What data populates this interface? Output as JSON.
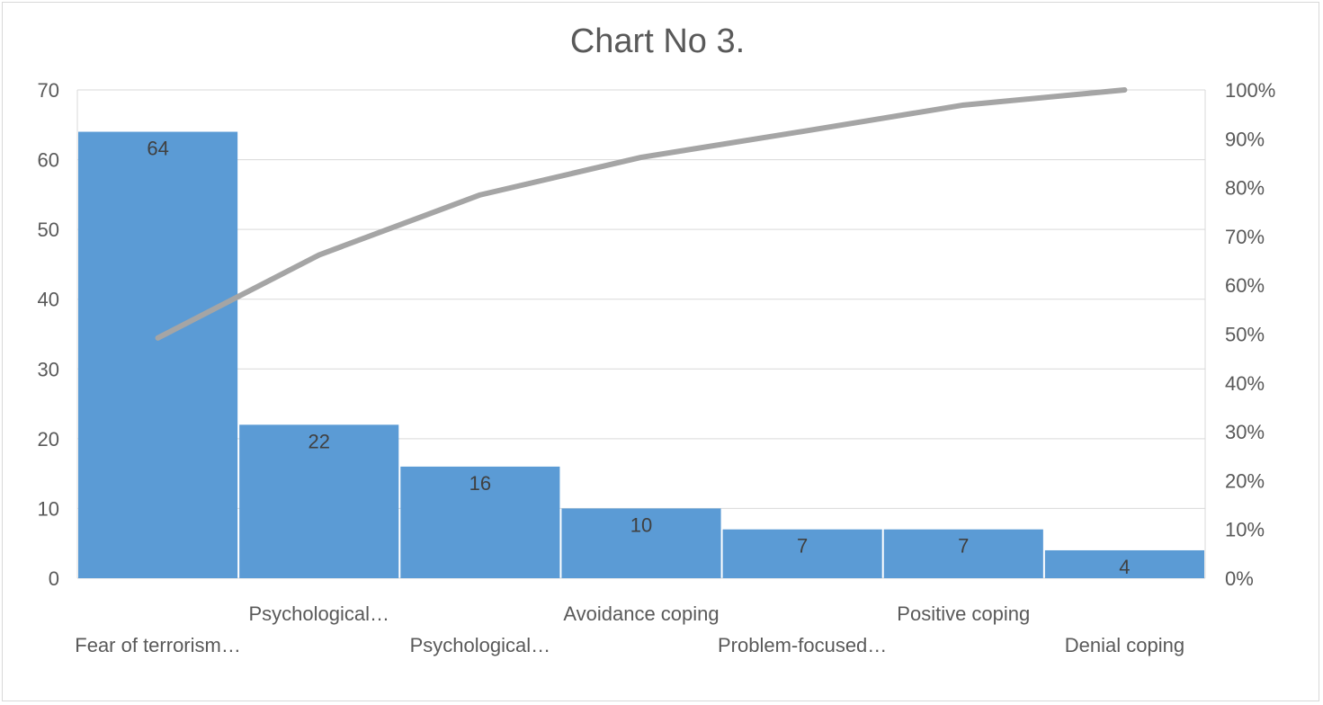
{
  "chart_data": {
    "type": "bar",
    "title": "Chart No 3.",
    "categories": [
      "Fear of terrorism…",
      "Psychological…",
      "Psychological…",
      "Avoidance coping",
      "Problem-focused…",
      "Positive coping",
      "Denial coping"
    ],
    "series": [
      {
        "type": "bar",
        "values": [
          64,
          22,
          16,
          10,
          7,
          7,
          4
        ],
        "color": "#5b9bd5",
        "data_labels": true
      },
      {
        "type": "line",
        "axis": "secondary",
        "values": [
          0.492,
          0.662,
          0.785,
          0.862,
          0.915,
          0.969,
          1.0
        ],
        "color": "#a5a5a5"
      }
    ],
    "ylim": [
      0,
      70
    ],
    "yticks": [
      0,
      10,
      20,
      30,
      40,
      50,
      60,
      70
    ],
    "y2lim": [
      0,
      1
    ],
    "y2ticks": [
      "0%",
      "10%",
      "20%",
      "30%",
      "40%",
      "50%",
      "60%",
      "70%",
      "80%",
      "90%",
      "100%"
    ],
    "grid": true,
    "legend": "none"
  }
}
